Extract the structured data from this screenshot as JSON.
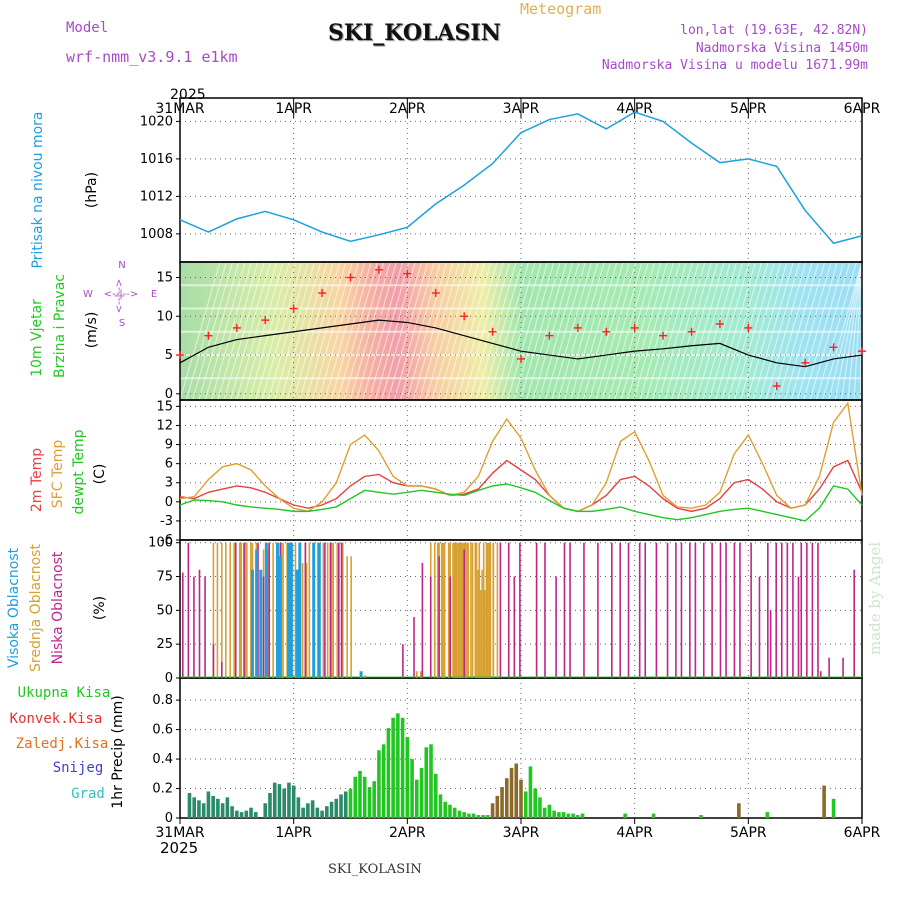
{
  "header": {
    "model_label": "Model",
    "model_name": "wrf-nmm_v3.9.1 e1km",
    "meteogram": "Meteogram",
    "station": "SKI_KOLASIN",
    "lonlat": "lon,lat (19.63E, 42.82N)",
    "elevation": "Nadmorska Visina 1450m",
    "model_elevation": "Nadmorska Visina u modelu 1671.99m",
    "footer_station": "SKI_KOLASIN",
    "credit": "made by Angel"
  },
  "colors": {
    "pressure": "#1ea0e0",
    "wind_label": "#22cc22",
    "temp2m": "#e84040",
    "sfc": "#e0a030",
    "dewpt": "#22c622",
    "high_cloud": "#1ea0e0",
    "mid_cloud": "#d8a030",
    "low_cloud": "#c0248a",
    "total_precip": "#22c622",
    "conv_precip": "#e83030",
    "frz_precip": "#e07020",
    "snow": "#4040d0",
    "graupel": "#30c0c0",
    "purple": "#a64ac9"
  },
  "chart_data": [
    {
      "type": "line",
      "panel": "pressure",
      "ylabel_lines": [
        "Pritisak na nivou mora",
        "(hPa)"
      ],
      "ylim": [
        1005,
        1022.5
      ],
      "yticks": [
        "1008",
        "1012",
        "1016",
        "1020"
      ],
      "x_start_year": "2025",
      "x_ticks_top": [
        "31MAR",
        "1APR",
        "2APR",
        "3APR",
        "4APR",
        "5APR",
        "6APR"
      ],
      "x_hours": [
        0,
        6,
        12,
        18,
        24,
        30,
        36,
        42,
        48,
        54,
        60,
        66,
        72,
        78,
        84,
        90,
        96,
        102,
        108,
        114,
        120,
        126,
        132,
        138,
        144
      ],
      "values": [
        1009.5,
        1008.2,
        1009.6,
        1010.4,
        1009.5,
        1008.2,
        1007.2,
        1007.9,
        1008.7,
        1011.2,
        1013.2,
        1015.5,
        1018.8,
        1020.2,
        1020.8,
        1019.2,
        1021.0,
        1020.0,
        1017.7,
        1015.6,
        1016.0,
        1015.2,
        1010.5,
        1007.0,
        1007.8
      ],
      "grid": true
    },
    {
      "type": "line",
      "panel": "wind",
      "ylabel_lines": [
        "10m Vjetar",
        "Brzina i Pravac",
        "(m/s)"
      ],
      "compass": [
        "N",
        "S",
        "W",
        "E",
        "<--|-->"
      ],
      "ylim": [
        -0.8,
        17
      ],
      "yticks": [
        "0",
        "5",
        "10",
        "15"
      ],
      "x_hours": [
        0,
        6,
        12,
        18,
        24,
        30,
        36,
        42,
        48,
        54,
        60,
        66,
        72,
        78,
        84,
        90,
        96,
        102,
        108,
        114,
        120,
        126,
        132,
        138,
        144
      ],
      "series": [
        {
          "values": [
            4.0,
            6.0,
            7.0,
            7.5,
            8.0,
            8.5,
            9.0,
            9.5,
            9.2,
            8.5,
            7.5,
            6.5,
            5.5,
            5.0,
            4.5,
            5.0,
            5.5,
            5.8,
            6.2,
            6.5,
            5.0,
            4.0,
            3.5,
            4.5,
            5.0
          ]
        },
        {
          "values": [
            5.0,
            7.5,
            8.5,
            9.5,
            11.0,
            13.0,
            15.0,
            16.0,
            15.5,
            13.0,
            10.0,
            8.0,
            4.5,
            7.5,
            8.5,
            8.0,
            8.5,
            7.5,
            8.0,
            9.0,
            8.5,
            1.0,
            4.0,
            6.0,
            5.5
          ]
        }
      ],
      "grid": true
    },
    {
      "type": "line",
      "panel": "temperature",
      "ylabel_lines": [
        "2m Temp",
        "SFC Temp",
        "dewpt Temp",
        "(C)"
      ],
      "ylim": [
        -6,
        16
      ],
      "yticks": [
        "-6",
        "-3",
        "0",
        "3",
        "6",
        "9",
        "12",
        "15"
      ],
      "x_hours": [
        0,
        3,
        6,
        9,
        12,
        15,
        18,
        21,
        24,
        27,
        30,
        33,
        36,
        39,
        42,
        45,
        48,
        51,
        54,
        57,
        60,
        63,
        66,
        69,
        72,
        75,
        78,
        81,
        84,
        87,
        90,
        93,
        96,
        99,
        102,
        105,
        108,
        111,
        114,
        117,
        120,
        123,
        126,
        129,
        132,
        135,
        138,
        141,
        144
      ],
      "series": [
        {
          "name": "2m Temp",
          "values": [
            0.8,
            0.5,
            1.5,
            2.0,
            2.5,
            2.2,
            1.5,
            0.5,
            -0.5,
            -1.0,
            -0.5,
            0.5,
            2.5,
            4.0,
            4.3,
            3.0,
            2.5,
            2.5,
            2.0,
            1.0,
            1.2,
            2.0,
            4.5,
            6.5,
            5.0,
            3.5,
            1.0,
            -1.0,
            -1.5,
            -0.5,
            1.0,
            3.5,
            4.0,
            2.5,
            0.5,
            -1.0,
            -1.5,
            -1.0,
            0.5,
            3.0,
            3.5,
            2.0,
            0.0,
            -1.0,
            -0.5,
            2.0,
            5.5,
            6.5,
            1.5
          ]
        },
        {
          "name": "SFC Temp",
          "values": [
            0.5,
            0.8,
            3.5,
            5.5,
            6.0,
            5.0,
            2.5,
            0.5,
            -1.0,
            -1.5,
            0.0,
            3.0,
            9.0,
            10.5,
            8.0,
            4.0,
            2.5,
            2.5,
            2.0,
            1.0,
            1.5,
            4.0,
            9.5,
            13.0,
            10.0,
            5.0,
            1.0,
            -1.0,
            -1.5,
            -0.5,
            3.0,
            9.5,
            11.0,
            6.5,
            1.0,
            -0.8,
            -1.0,
            -0.5,
            1.5,
            7.5,
            10.5,
            6.0,
            1.0,
            -1.0,
            -0.5,
            4.0,
            12.5,
            15.5,
            1.0
          ]
        },
        {
          "name": "dewpt Temp",
          "values": [
            -0.5,
            0.3,
            0.2,
            0.0,
            -0.5,
            -0.8,
            -1.0,
            -1.2,
            -1.5,
            -1.5,
            -1.2,
            -0.8,
            0.5,
            1.8,
            1.5,
            1.2,
            1.5,
            1.8,
            1.5,
            1.2,
            1.0,
            1.8,
            2.5,
            2.8,
            2.2,
            1.5,
            0.2,
            -1.0,
            -1.5,
            -1.5,
            -1.2,
            -0.8,
            -1.5,
            -2.0,
            -2.5,
            -2.8,
            -2.5,
            -2.0,
            -1.5,
            -1.2,
            -1.0,
            -1.5,
            -2.0,
            -2.5,
            -3.0,
            -1.0,
            2.5,
            2.0,
            -0.5
          ]
        }
      ],
      "grid": true
    },
    {
      "type": "bar",
      "panel": "clouds",
      "ylabel_lines": [
        "Visoka Oblacnost",
        "Srednja Oblacnost",
        "Niska Oblacnost",
        "(%)"
      ],
      "ylim": [
        0,
        102
      ],
      "yticks": [
        "0",
        "25",
        "50",
        "75",
        "100"
      ],
      "series": [
        {
          "name": "Visoka Oblacnost",
          "x": [
            52,
            55,
            58,
            62,
            70,
            72,
            78,
            80,
            84,
            86,
            96,
            100,
            130
          ],
          "values": [
            80,
            95,
            80,
            100,
            100,
            90,
            100,
            100,
            80,
            100,
            100,
            100,
            5
          ]
        },
        {
          "name": "Srednja Oblacnost",
          "x": [
            24,
            30,
            36,
            40,
            44,
            48,
            52,
            60,
            64,
            70,
            74,
            80,
            88,
            90,
            96,
            100,
            106,
            110,
            114,
            120,
            130,
            170,
            180,
            185,
            186,
            190,
            194,
            196,
            198,
            200,
            202,
            204,
            206,
            210,
            212,
            214,
            216,
            218,
            220,
            222,
            225
          ],
          "values": [
            100,
            100,
            100,
            100,
            100,
            100,
            100,
            95,
            100,
            100,
            100,
            100,
            85,
            100,
            100,
            100,
            100,
            100,
            100,
            90,
            2,
            5,
            100,
            100,
            100,
            100,
            100,
            100,
            100,
            100,
            100,
            100,
            100,
            100,
            100,
            80,
            65,
            100,
            100,
            100,
            100
          ]
        },
        {
          "name": "Niska Oblacnost",
          "x": [
            2,
            6,
            10,
            14,
            18,
            24,
            30,
            40,
            46,
            56,
            60,
            64,
            72,
            80,
            90,
            96,
            100,
            104,
            108,
            114,
            116,
            160,
            168,
            174,
            180,
            186,
            194,
            204,
            230,
            236,
            240,
            244,
            256,
            262,
            270,
            276,
            280,
            290,
            300,
            310,
            316,
            322,
            330,
            334,
            342,
            350,
            356,
            360,
            366,
            370,
            376,
            382,
            388,
            392,
            398,
            402,
            410,
            416,
            422,
            424,
            428,
            432,
            436,
            440,
            444,
            446,
            450,
            454,
            458,
            460,
            466,
            476,
            484
          ],
          "values": [
            78,
            100,
            75,
            80,
            75,
            25,
            12,
            100,
            100,
            100,
            75,
            100,
            100,
            100,
            100,
            100,
            80,
            100,
            100,
            100,
            100,
            25,
            45,
            85,
            75,
            90,
            75,
            95,
            100,
            100,
            75,
            100,
            100,
            100,
            75,
            100,
            100,
            100,
            100,
            100,
            100,
            100,
            100,
            100,
            100,
            100,
            100,
            100,
            100,
            100,
            100,
            100,
            100,
            100,
            100,
            100,
            100,
            75,
            100,
            50,
            100,
            100,
            100,
            100,
            75,
            100,
            100,
            100,
            100,
            5,
            15,
            15,
            80
          ]
        }
      ],
      "grid": true
    },
    {
      "type": "bar",
      "panel": "precip",
      "ylabel_lines": [
        "1hr Precip (mm)"
      ],
      "legend": [
        "Ukupna Kisa",
        "Konvek.Kisa",
        "Zaledj.Kisa",
        "Snijeg",
        "Grad"
      ],
      "ylim": [
        0,
        0.95
      ],
      "yticks": [
        "0",
        "0.2",
        "0.4",
        "0.6",
        "0.8"
      ],
      "x_ticks_bottom": [
        "31MAR",
        "1APR",
        "2APR",
        "3APR",
        "4APR",
        "5APR",
        "6APR"
      ],
      "x_end_year": "2025",
      "x_hours": [
        2,
        3,
        4,
        5,
        6,
        7,
        8,
        9,
        10,
        11,
        12,
        13,
        14,
        15,
        16,
        18,
        19,
        20,
        21,
        22,
        23,
        24,
        25,
        26,
        27,
        28,
        29,
        30,
        31,
        32,
        33,
        34,
        35,
        36,
        37,
        38,
        39,
        40,
        41,
        42,
        43,
        44,
        45,
        46,
        47,
        48,
        49,
        50,
        51,
        52,
        53,
        54,
        55,
        56,
        57,
        58,
        59,
        60,
        61,
        62,
        63,
        64,
        65,
        66,
        67,
        68,
        69,
        70,
        71,
        72,
        73,
        74,
        75,
        76,
        77,
        78,
        79,
        80,
        81,
        82,
        83,
        84,
        85,
        94,
        100,
        110,
        118,
        124,
        136,
        138
      ],
      "values": [
        0.17,
        0.14,
        0.12,
        0.1,
        0.18,
        0.15,
        0.13,
        0.1,
        0.14,
        0.08,
        0.05,
        0.04,
        0.05,
        0.07,
        0.04,
        0.1,
        0.17,
        0.24,
        0.23,
        0.2,
        0.24,
        0.22,
        0.14,
        0.07,
        0.1,
        0.12,
        0.07,
        0.05,
        0.08,
        0.11,
        0.13,
        0.16,
        0.18,
        0.2,
        0.28,
        0.32,
        0.28,
        0.21,
        0.25,
        0.46,
        0.5,
        0.61,
        0.68,
        0.71,
        0.68,
        0.55,
        0.4,
        0.26,
        0.34,
        0.48,
        0.5,
        0.3,
        0.16,
        0.11,
        0.09,
        0.07,
        0.05,
        0.04,
        0.03,
        0.03,
        0.02,
        0.02,
        0.02,
        0.1,
        0.15,
        0.21,
        0.27,
        0.34,
        0.37,
        0.26,
        0.18,
        0.35,
        0.2,
        0.14,
        0.07,
        0.09,
        0.05,
        0.04,
        0.04,
        0.03,
        0.03,
        0.02,
        0.03,
        0.03,
        0.03,
        0.02,
        0.1,
        0.04,
        0.22,
        0.13
      ],
      "grid": true
    }
  ]
}
